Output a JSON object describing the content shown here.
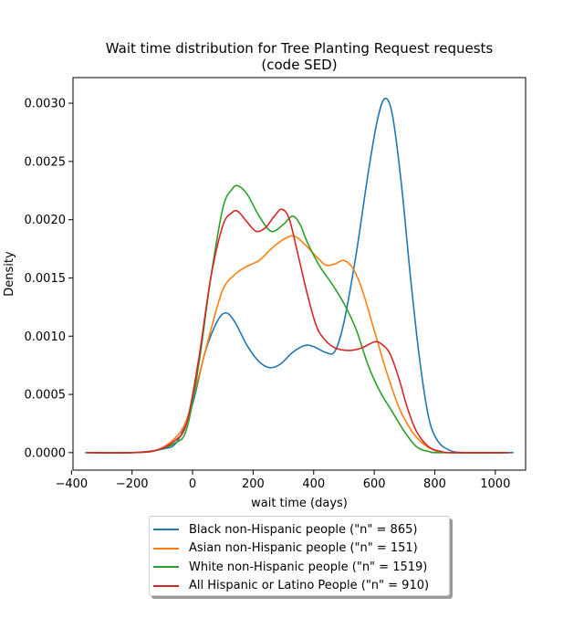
{
  "chart_data": {
    "type": "line",
    "title": "Wait time distribution  for Tree Planting Request requests",
    "subtitle": "(code SED)",
    "xlabel": "wait time (days)",
    "ylabel": "Density",
    "xlim": [
      -395,
      1100
    ],
    "ylim": [
      -0.00015,
      0.00322
    ],
    "xticks": [
      -400,
      -200,
      0,
      200,
      400,
      600,
      800,
      1000
    ],
    "xtick_labels": [
      "−400",
      "−200",
      "0",
      "200",
      "400",
      "600",
      "800",
      "1000"
    ],
    "yticks": [
      0.0,
      0.0005,
      0.001,
      0.0015,
      0.002,
      0.0025,
      0.003
    ],
    "ytick_labels": [
      "0.0000",
      "0.0005",
      "0.0010",
      "0.0015",
      "0.0020",
      "0.0025",
      "0.0030"
    ],
    "grid": false,
    "legend_position": "bottom-center",
    "series": [
      {
        "name": "Black non-Hispanic people (\"n\" = 865)",
        "color": "#1f77b4",
        "points": [
          [
            -355,
            0
          ],
          [
            -200,
            0.0
          ],
          [
            -100,
            3e-05
          ],
          [
            -50,
            0.0001
          ],
          [
            0,
            0.00042
          ],
          [
            40,
            0.00085
          ],
          [
            80,
            0.00112
          ],
          [
            110,
            0.0012
          ],
          [
            140,
            0.00112
          ],
          [
            180,
            0.00092
          ],
          [
            220,
            0.00078
          ],
          [
            255,
            0.00073
          ],
          [
            290,
            0.00076
          ],
          [
            330,
            0.00086
          ],
          [
            370,
            0.00092
          ],
          [
            400,
            0.00091
          ],
          [
            440,
            0.00086
          ],
          [
            470,
            0.00087
          ],
          [
            500,
            0.00112
          ],
          [
            540,
            0.0017
          ],
          [
            580,
            0.0024
          ],
          [
            610,
            0.00285
          ],
          [
            635,
            0.00304
          ],
          [
            660,
            0.0029
          ],
          [
            690,
            0.0023
          ],
          [
            720,
            0.0015
          ],
          [
            750,
            0.0008
          ],
          [
            780,
            0.0003
          ],
          [
            810,
            0.0001
          ],
          [
            850,
            2e-05
          ],
          [
            900,
            0.0
          ],
          [
            1060,
            0.0
          ]
        ]
      },
      {
        "name": "Asian non-Hispanic people (\"n\" = 151)",
        "color": "#ff7f0e",
        "points": [
          [
            -350,
            0
          ],
          [
            -200,
            0.0
          ],
          [
            -120,
            2e-05
          ],
          [
            -60,
            0.00012
          ],
          [
            -20,
            0.00028
          ],
          [
            20,
            0.00065
          ],
          [
            60,
            0.00105
          ],
          [
            100,
            0.0014
          ],
          [
            140,
            0.00153
          ],
          [
            180,
            0.0016
          ],
          [
            220,
            0.00165
          ],
          [
            260,
            0.00175
          ],
          [
            300,
            0.00183
          ],
          [
            335,
            0.00186
          ],
          [
            370,
            0.00179
          ],
          [
            410,
            0.00168
          ],
          [
            440,
            0.00161
          ],
          [
            470,
            0.00162
          ],
          [
            500,
            0.00165
          ],
          [
            530,
            0.00158
          ],
          [
            560,
            0.0014
          ],
          [
            600,
            0.00105
          ],
          [
            640,
            0.0007
          ],
          [
            680,
            0.0004
          ],
          [
            720,
            0.0002
          ],
          [
            760,
            8e-05
          ],
          [
            800,
            2e-05
          ],
          [
            850,
            0.0
          ],
          [
            1045,
            0.0
          ]
        ]
      },
      {
        "name": "White non-Hispanic people (\"n\" = 1519)",
        "color": "#2ca02c",
        "points": [
          [
            -350,
            0
          ],
          [
            -200,
            0.0
          ],
          [
            -120,
            2e-05
          ],
          [
            -60,
            8e-05
          ],
          [
            -20,
            0.0002
          ],
          [
            20,
            0.00075
          ],
          [
            60,
            0.0015
          ],
          [
            100,
            0.0021
          ],
          [
            130,
            0.00226
          ],
          [
            150,
            0.00229
          ],
          [
            180,
            0.00222
          ],
          [
            220,
            0.00203
          ],
          [
            260,
            0.0019
          ],
          [
            300,
            0.00196
          ],
          [
            330,
            0.00203
          ],
          [
            355,
            0.00196
          ],
          [
            380,
            0.0018
          ],
          [
            420,
            0.0016
          ],
          [
            460,
            0.00145
          ],
          [
            500,
            0.00128
          ],
          [
            540,
            0.00106
          ],
          [
            580,
            0.00075
          ],
          [
            620,
            0.00052
          ],
          [
            660,
            0.00035
          ],
          [
            700,
            0.00018
          ],
          [
            740,
            5e-05
          ],
          [
            780,
            1e-05
          ],
          [
            820,
            0.0
          ],
          [
            1045,
            0.0
          ]
        ]
      },
      {
        "name": "All Hispanic or Latino People (\"n\" = 910)",
        "color": "#d62728",
        "points": [
          [
            -350,
            0
          ],
          [
            -200,
            0.0
          ],
          [
            -120,
            2e-05
          ],
          [
            -60,
            0.0001
          ],
          [
            -20,
            0.00025
          ],
          [
            20,
            0.0008
          ],
          [
            60,
            0.0015
          ],
          [
            100,
            0.00195
          ],
          [
            130,
            0.00206
          ],
          [
            150,
            0.00207
          ],
          [
            180,
            0.00198
          ],
          [
            210,
            0.0019
          ],
          [
            240,
            0.00193
          ],
          [
            270,
            0.00203
          ],
          [
            295,
            0.00209
          ],
          [
            320,
            0.002
          ],
          [
            350,
            0.00168
          ],
          [
            380,
            0.00135
          ],
          [
            410,
            0.00108
          ],
          [
            440,
            0.00096
          ],
          [
            470,
            0.0009
          ],
          [
            500,
            0.00088
          ],
          [
            530,
            0.00088
          ],
          [
            560,
            0.0009
          ],
          [
            600,
            0.00095
          ],
          [
            620,
            0.00094
          ],
          [
            650,
            0.00086
          ],
          [
            680,
            0.00065
          ],
          [
            710,
            0.00038
          ],
          [
            740,
            0.00018
          ],
          [
            780,
            5e-05
          ],
          [
            820,
            1e-05
          ],
          [
            860,
            0.0
          ],
          [
            1045,
            0.0
          ]
        ]
      }
    ]
  }
}
